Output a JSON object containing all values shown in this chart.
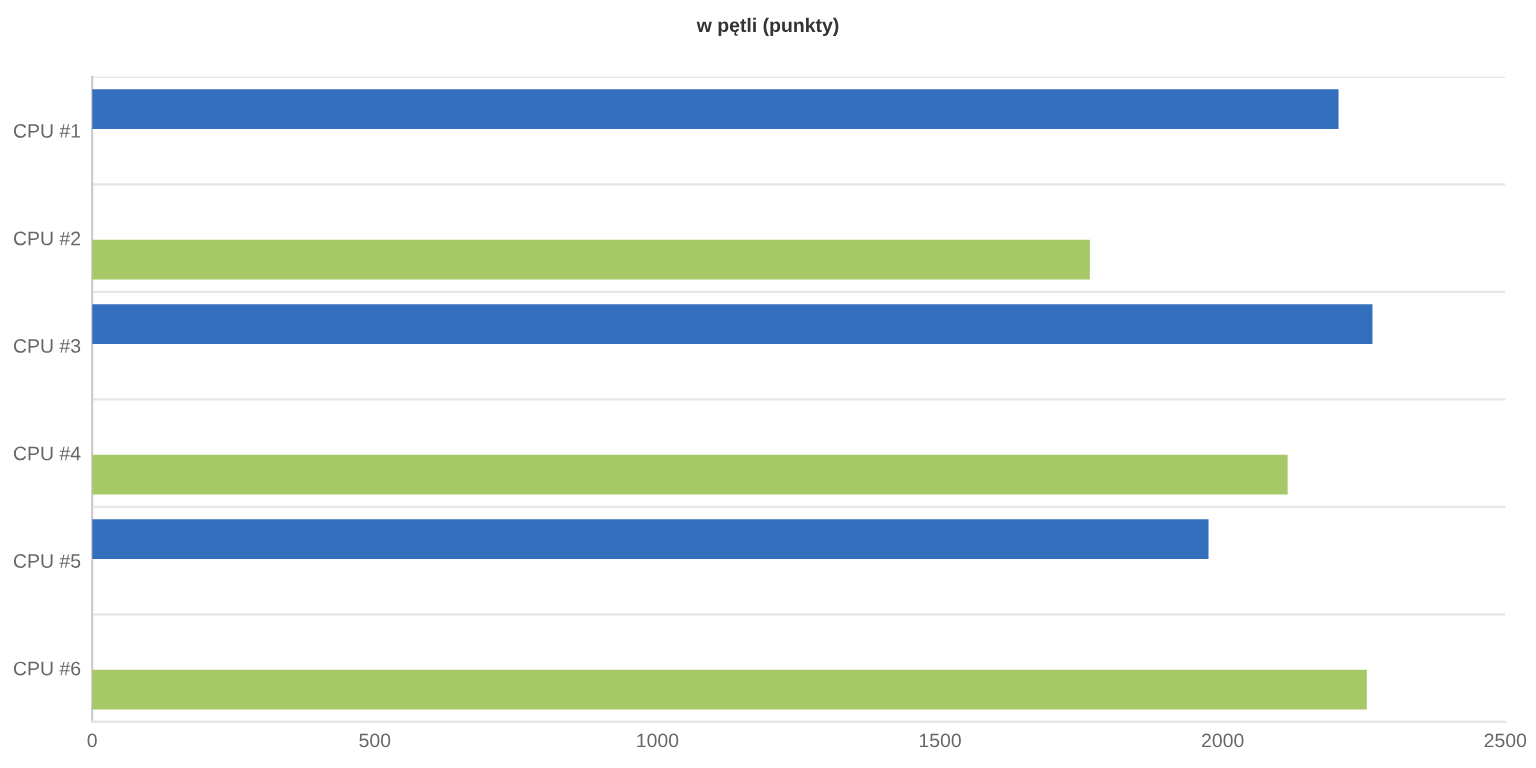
{
  "chart_data": {
    "type": "bar",
    "orientation": "horizontal",
    "title": "w pętli (punkty)",
    "categories": [
      "CPU #1",
      "CPU #2",
      "CPU #3",
      "CPU #4",
      "CPU #5",
      "CPU #6"
    ],
    "series": [
      {
        "color": "#336fbd",
        "values": [
          2205,
          null,
          2265,
          null,
          1975,
          null
        ]
      },
      {
        "color": "#a6c866",
        "values": [
          null,
          1765,
          null,
          2115,
          null,
          2255
        ]
      }
    ],
    "xlim": [
      0,
      2500
    ],
    "xticks": [
      0,
      500,
      1000,
      1500,
      2000,
      2500
    ],
    "grid": "y"
  }
}
